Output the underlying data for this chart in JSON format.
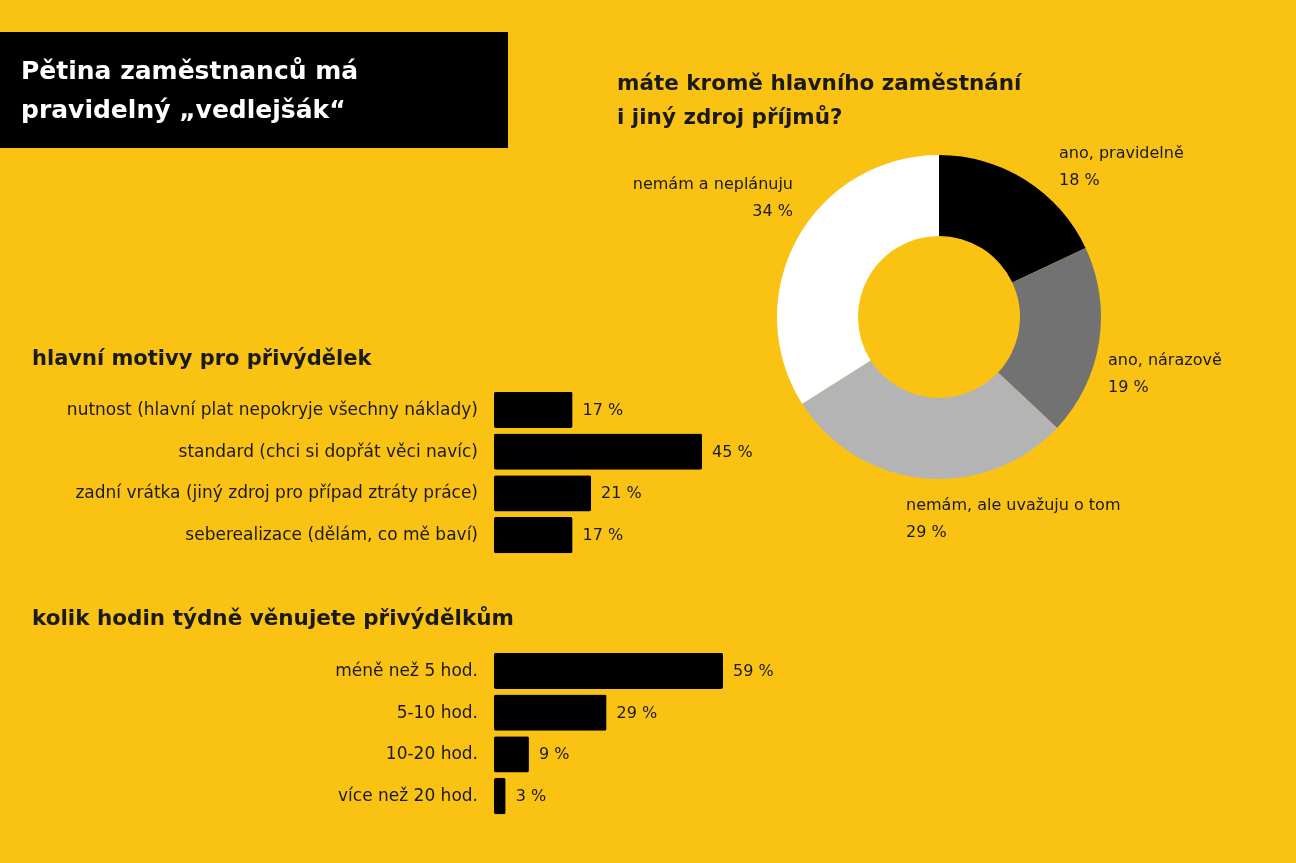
{
  "chart_data": [
    {
      "type": "donut",
      "title": "Pětina zaměstnanců má pravidelný „vedlejšák“",
      "subtitle": "máte kromě hlavního zaměstnání i jiný zdroj příjmů?",
      "categories": [
        "ano, pravidelně",
        "ano, nárazově",
        "nemám, ale uvažuju o tom",
        "nemám a neplánuju"
      ],
      "values": [
        18,
        19,
        29,
        34
      ],
      "value_labels": [
        "18 %",
        "19 %",
        "29 %",
        "34 %"
      ],
      "colors": [
        "#000000",
        "#727272",
        "#b4b4b4",
        "#ffffff"
      ]
    },
    {
      "type": "bar",
      "orientation": "horizontal",
      "title": "hlavní motivy pro přivýdělek",
      "categories": [
        "nutnost (hlavní plat nepokryje všechny náklady)",
        "standard (chci si dopřát věci navíc)",
        "zadní vrátka (jiný zdroj pro případ ztráty práce)",
        "seberealizace (dělám, co mě baví)"
      ],
      "values": [
        17,
        45,
        21,
        17
      ],
      "value_labels": [
        "17 %",
        "45 %",
        "21 %",
        "17 %"
      ],
      "color": "#000000"
    },
    {
      "type": "bar",
      "orientation": "horizontal",
      "title": "kolik hodin týdně věnujete přivýdělkům",
      "categories": [
        "méně než 5 hod.",
        "5-10 hod.",
        "10-20 hod.",
        "více než 20 hod."
      ],
      "values": [
        59,
        29,
        9,
        3
      ],
      "value_labels": [
        "59 %",
        "29 %",
        "9 %",
        "3 %"
      ],
      "color": "#000000"
    }
  ]
}
